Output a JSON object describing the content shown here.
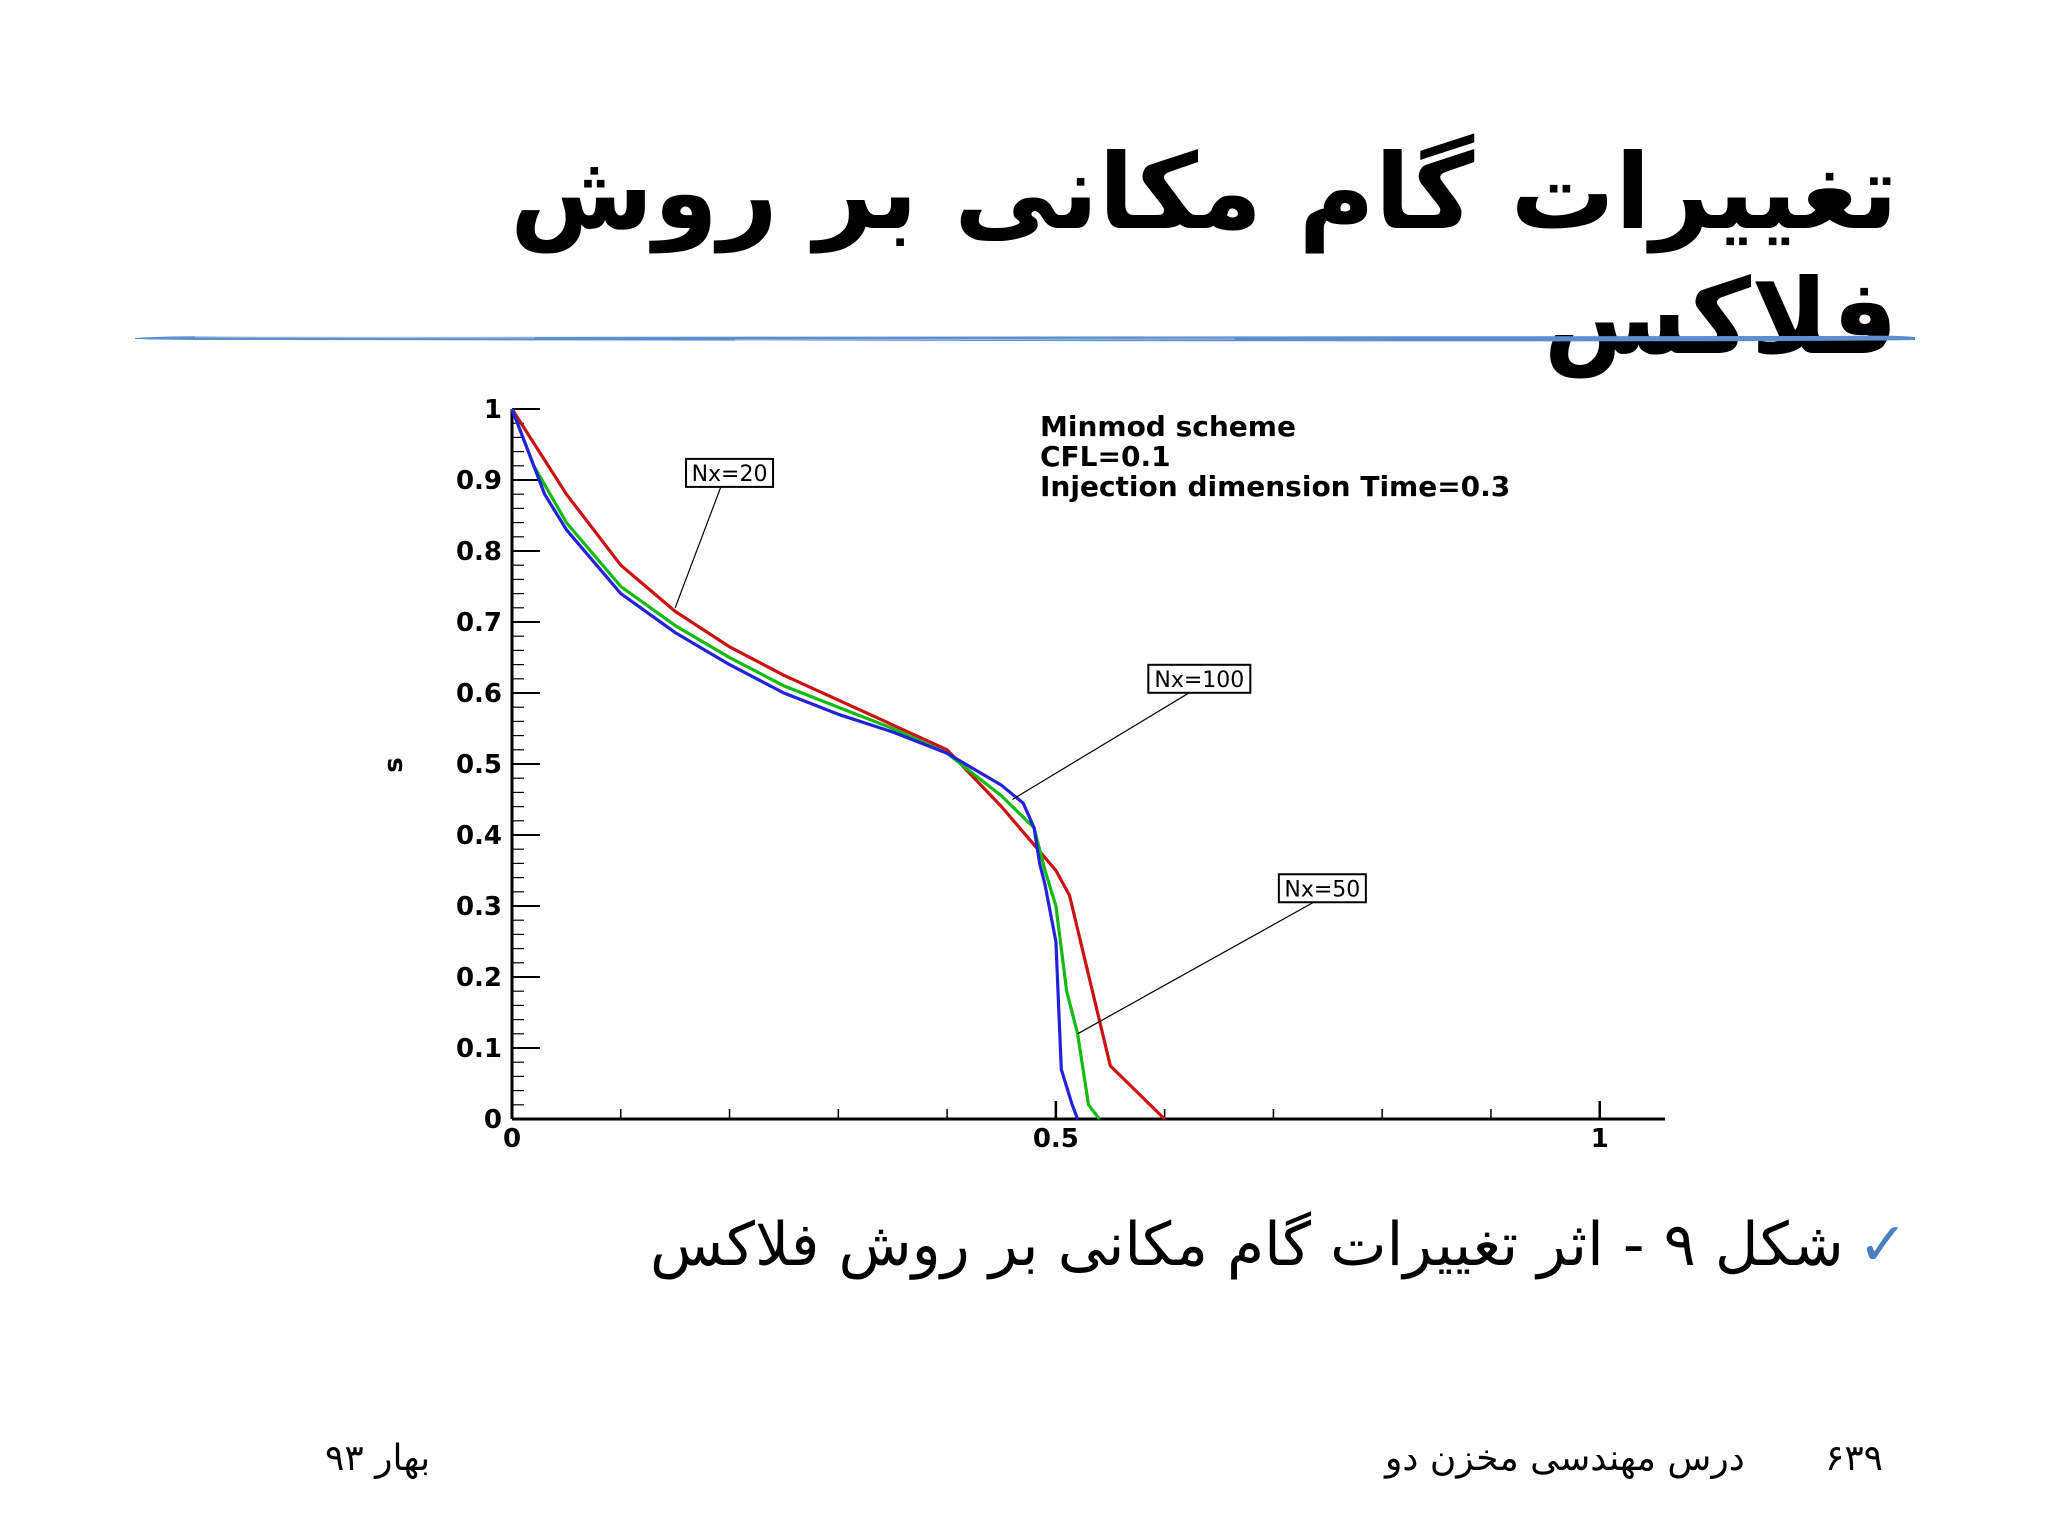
{
  "slide": {
    "title": "تغییرات گام مکانی بر روش فلاکس",
    "caption": "شکل ۹ - اثر تغییرات گام مکانی بر روش فلاکس",
    "check_icon": "check-icon",
    "accent_color": "#4a7fc0",
    "footer": {
      "date": "بهار ۹۳",
      "course": "درس مهندسی مخزن دو",
      "page": "۶۳۹"
    }
  },
  "chart_data": {
    "type": "line",
    "ylabel": "s",
    "xlabel": "",
    "xlim": [
      0,
      1.06
    ],
    "ylim": [
      0,
      1
    ],
    "x_ticks": [
      "0",
      "0.5",
      "1"
    ],
    "y_ticks": [
      "0",
      "0.1",
      "0.2",
      "0.3",
      "0.4",
      "0.5",
      "0.6",
      "0.7",
      "0.8",
      "0.9",
      "1"
    ],
    "annotation_lines": [
      "Minmod scheme",
      "CFL=0.1",
      "Injection dimension Time=0.3"
    ],
    "series": [
      {
        "name": "Nx=20",
        "color": "#cc1111",
        "points": [
          [
            0,
            1
          ],
          [
            0.05,
            0.88
          ],
          [
            0.1,
            0.78
          ],
          [
            0.15,
            0.715
          ],
          [
            0.2,
            0.665
          ],
          [
            0.25,
            0.625
          ],
          [
            0.3,
            0.59
          ],
          [
            0.35,
            0.555
          ],
          [
            0.4,
            0.52
          ],
          [
            0.45,
            0.44
          ],
          [
            0.5,
            0.35
          ],
          [
            0.5125,
            0.315
          ],
          [
            0.55,
            0.075
          ],
          [
            0.6,
            0
          ]
        ]
      },
      {
        "name": "Nx=50",
        "color": "#11bb11",
        "points": [
          [
            0,
            1
          ],
          [
            0.02,
            0.92
          ],
          [
            0.05,
            0.84
          ],
          [
            0.1,
            0.75
          ],
          [
            0.15,
            0.695
          ],
          [
            0.2,
            0.65
          ],
          [
            0.25,
            0.61
          ],
          [
            0.3,
            0.58
          ],
          [
            0.35,
            0.55
          ],
          [
            0.4,
            0.515
          ],
          [
            0.45,
            0.455
          ],
          [
            0.48,
            0.41
          ],
          [
            0.49,
            0.35
          ],
          [
            0.5,
            0.3
          ],
          [
            0.51,
            0.18
          ],
          [
            0.52,
            0.12
          ],
          [
            0.53,
            0.02
          ],
          [
            0.54,
            0
          ]
        ]
      },
      {
        "name": "Nx=100",
        "color": "#2222dd",
        "points": [
          [
            0,
            1
          ],
          [
            0.01,
            0.96
          ],
          [
            0.03,
            0.88
          ],
          [
            0.05,
            0.83
          ],
          [
            0.1,
            0.74
          ],
          [
            0.15,
            0.685
          ],
          [
            0.2,
            0.64
          ],
          [
            0.25,
            0.6
          ],
          [
            0.3,
            0.57
          ],
          [
            0.35,
            0.545
          ],
          [
            0.4,
            0.515
          ],
          [
            0.45,
            0.47
          ],
          [
            0.47,
            0.445
          ],
          [
            0.48,
            0.41
          ],
          [
            0.485,
            0.36
          ],
          [
            0.49,
            0.33
          ],
          [
            0.5,
            0.25
          ],
          [
            0.505,
            0.07
          ],
          [
            0.515,
            0.02
          ],
          [
            0.52,
            0
          ]
        ]
      }
    ],
    "series_labels": [
      {
        "text": "Nx=20",
        "at": [
          0.16,
          0.91
        ],
        "points_to": [
          0.15,
          0.72
        ]
      },
      {
        "text": "Nx=100",
        "at": [
          0.585,
          0.62
        ],
        "points_to": [
          0.46,
          0.45
        ]
      },
      {
        "text": "Nx=50",
        "at": [
          0.705,
          0.325
        ],
        "points_to": [
          0.52,
          0.12
        ]
      }
    ]
  }
}
